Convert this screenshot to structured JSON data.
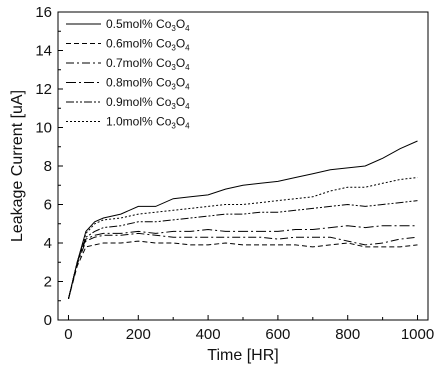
{
  "chart_data": {
    "type": "line",
    "title": "",
    "xlabel": "Time [HR]",
    "ylabel": "Leakage Current [uA]",
    "xlim": [
      -30,
      1030
    ],
    "ylim": [
      0,
      16
    ],
    "xticks": [
      0,
      200,
      400,
      600,
      800,
      1000
    ],
    "yticks": [
      0,
      2,
      4,
      6,
      8,
      10,
      12,
      14,
      16
    ],
    "legend_position": "top-left",
    "grid": false,
    "series": [
      {
        "name": "0.5mol% Co3O4",
        "legend": {
          "prefix": "0.5mol% Co",
          "sub1": "3",
          "mid": "O",
          "sub2": "4"
        },
        "dash": "solid",
        "x": [
          0,
          25,
          50,
          75,
          100,
          150,
          200,
          250,
          300,
          350,
          400,
          450,
          500,
          550,
          600,
          650,
          700,
          750,
          800,
          850,
          900,
          950,
          1000
        ],
        "y": [
          1.1,
          3.0,
          4.6,
          5.1,
          5.3,
          5.5,
          5.9,
          5.9,
          6.3,
          6.4,
          6.5,
          6.8,
          7.0,
          7.1,
          7.2,
          7.4,
          7.6,
          7.8,
          7.9,
          8.0,
          8.4,
          8.9,
          9.3
        ]
      },
      {
        "name": "0.6mol% Co3O4",
        "legend": {
          "prefix": "0.6mol% Co",
          "sub1": "3",
          "mid": "O",
          "sub2": "4"
        },
        "dash": "5,3",
        "x": [
          0,
          25,
          50,
          75,
          100,
          150,
          200,
          250,
          300,
          350,
          400,
          450,
          500,
          550,
          600,
          650,
          700,
          750,
          800,
          850,
          900,
          950,
          1000
        ],
        "y": [
          1.1,
          2.8,
          3.8,
          3.9,
          4.0,
          4.0,
          4.1,
          4.0,
          4.0,
          3.9,
          3.9,
          4.0,
          3.9,
          3.9,
          3.9,
          3.9,
          3.8,
          3.9,
          4.0,
          3.8,
          3.8,
          3.8,
          3.9
        ]
      },
      {
        "name": "0.7mol% Co3O4",
        "legend": {
          "prefix": "0.7mol% Co",
          "sub1": "3",
          "mid": "O",
          "sub2": "4"
        },
        "dash": "8,3,2,3",
        "x": [
          0,
          25,
          50,
          75,
          100,
          150,
          200,
          250,
          300,
          350,
          400,
          450,
          500,
          550,
          600,
          650,
          700,
          750,
          800,
          850,
          900,
          950,
          1000
        ],
        "y": [
          1.1,
          2.9,
          4.1,
          4.3,
          4.4,
          4.4,
          4.5,
          4.4,
          4.3,
          4.3,
          4.3,
          4.3,
          4.3,
          4.3,
          4.2,
          4.3,
          4.3,
          4.3,
          4.1,
          3.9,
          4.0,
          4.2,
          4.3
        ]
      },
      {
        "name": "0.8mol% Co3O4",
        "legend": {
          "prefix": "0.8mol% Co",
          "sub1": "3",
          "mid": "O",
          "sub2": "4"
        },
        "dash": "10,3,2,3",
        "x": [
          0,
          25,
          50,
          75,
          100,
          150,
          200,
          250,
          300,
          350,
          400,
          450,
          500,
          550,
          600,
          650,
          700,
          750,
          800,
          850,
          900,
          950,
          1000
        ],
        "y": [
          1.1,
          3.0,
          4.2,
          4.4,
          4.5,
          4.5,
          4.6,
          4.5,
          4.6,
          4.6,
          4.7,
          4.6,
          4.6,
          4.6,
          4.6,
          4.7,
          4.7,
          4.8,
          4.9,
          4.8,
          4.9,
          4.9,
          4.9
        ]
      },
      {
        "name": "0.9mol% Co3O4",
        "legend": {
          "prefix": "0.9mol% Co",
          "sub1": "3",
          "mid": "O",
          "sub2": "4"
        },
        "dash": "8,2,2,2,2,2",
        "x": [
          0,
          25,
          50,
          75,
          100,
          150,
          200,
          250,
          300,
          350,
          400,
          450,
          500,
          550,
          600,
          650,
          700,
          750,
          800,
          850,
          900,
          950,
          1000
        ],
        "y": [
          1.1,
          3.0,
          4.3,
          4.6,
          4.8,
          4.9,
          5.1,
          5.1,
          5.2,
          5.3,
          5.4,
          5.5,
          5.5,
          5.6,
          5.6,
          5.7,
          5.8,
          5.9,
          6.0,
          5.9,
          6.0,
          6.1,
          6.2
        ]
      },
      {
        "name": "1.0mol% Co3O4",
        "legend": {
          "prefix": "1.0mol% Co",
          "sub1": "3",
          "mid": "O",
          "sub2": "4"
        },
        "dash": "2,2",
        "x": [
          0,
          25,
          50,
          75,
          100,
          150,
          200,
          250,
          300,
          350,
          400,
          450,
          500,
          550,
          600,
          650,
          700,
          750,
          800,
          850,
          900,
          950,
          1000
        ],
        "y": [
          1.1,
          3.0,
          4.5,
          5.0,
          5.2,
          5.3,
          5.5,
          5.6,
          5.7,
          5.8,
          5.9,
          6.0,
          6.0,
          6.1,
          6.2,
          6.3,
          6.4,
          6.7,
          6.9,
          6.9,
          7.1,
          7.3,
          7.4
        ]
      }
    ]
  }
}
